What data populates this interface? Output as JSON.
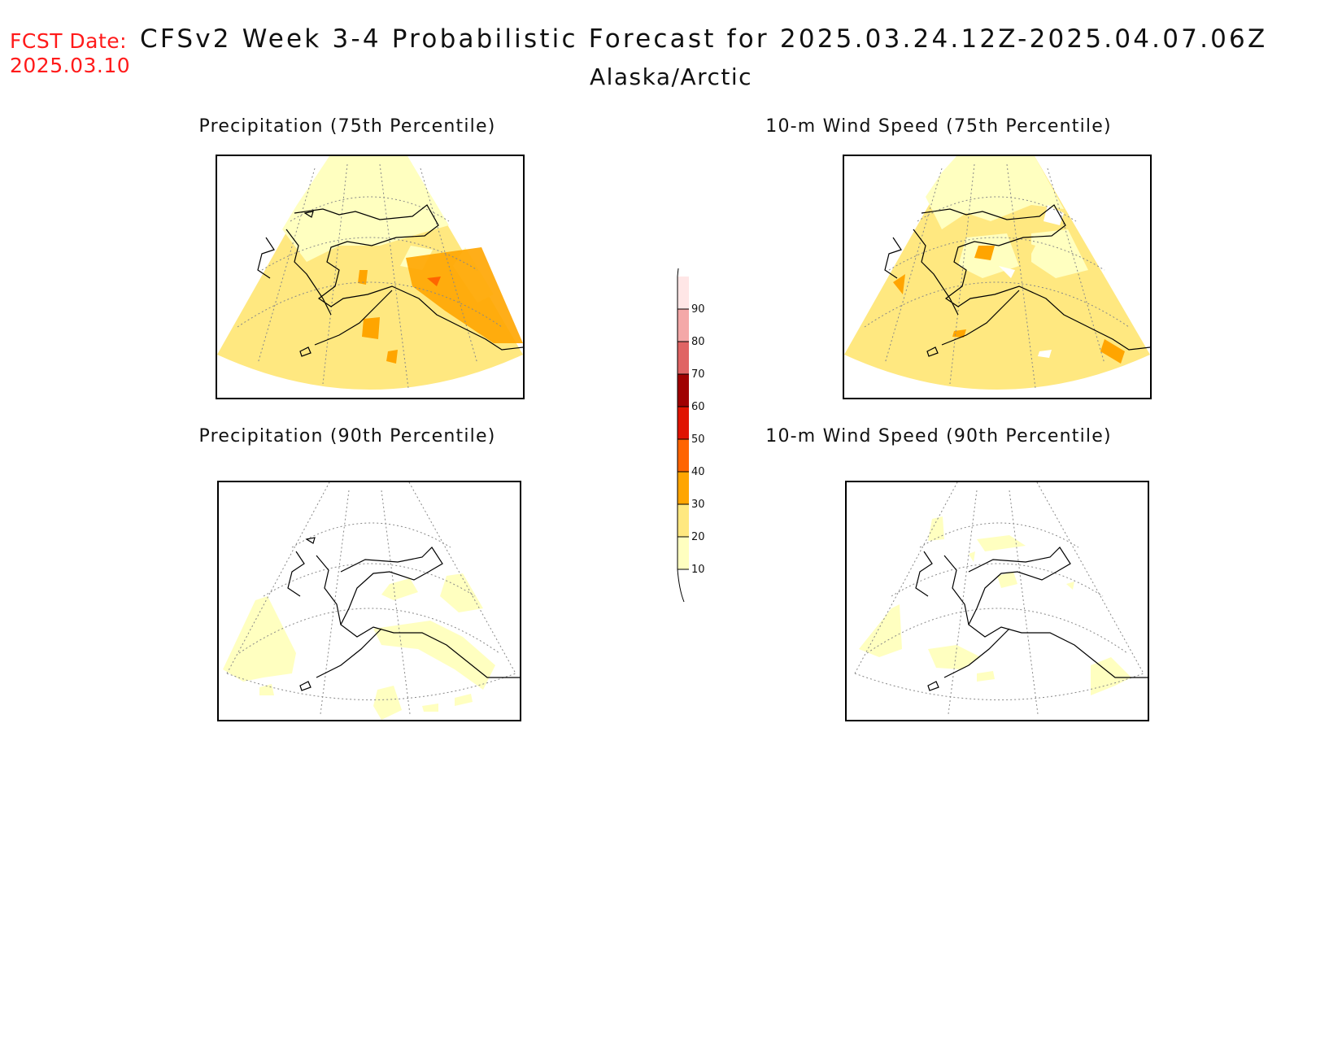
{
  "header": {
    "fcst_label": "FCST Date:",
    "fcst_date": "2025.03.10",
    "title": "CFSv2 Week 3-4 Probabilistic Forecast for 2025.03.24.12Z-2025.04.07.06Z",
    "region": "Alaska/Arctic"
  },
  "panels": [
    {
      "title": "Precipitation (75th Percentile)"
    },
    {
      "title": "10-m Wind Speed (75th Percentile)"
    },
    {
      "title": "Precipitation (90th Percentile)"
    },
    {
      "title": "10-m Wind Speed (90th Percentile)"
    }
  ],
  "colorbar": {
    "levels": [
      "10",
      "20",
      "30",
      "40",
      "50",
      "60",
      "70",
      "80",
      "90"
    ],
    "colors": [
      "#ffffc0",
      "#ffe880",
      "#ffa500",
      "#ff6400",
      "#e01400",
      "#a00000",
      "#e06464",
      "#f4a8a8",
      "#ffe6e6"
    ]
  }
}
